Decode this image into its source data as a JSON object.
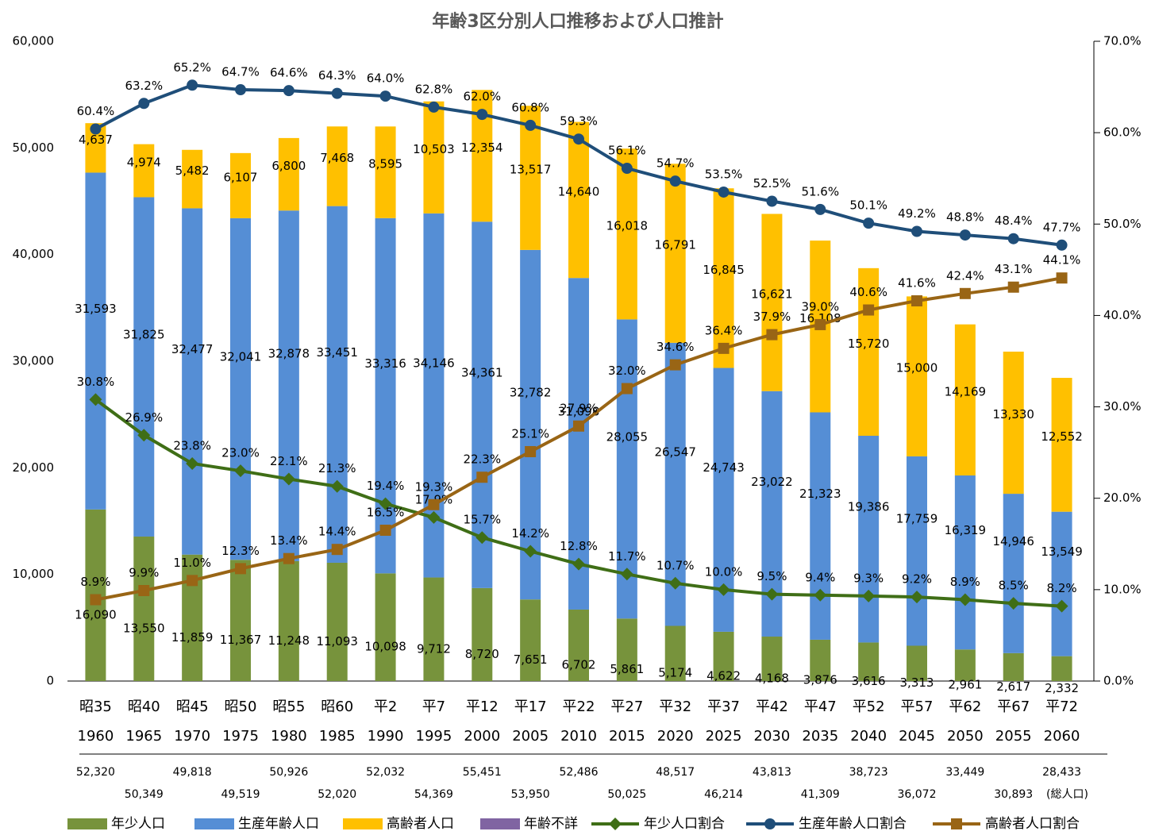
{
  "chart_data": {
    "type": "bar",
    "title": "年齢3区分別人口推移および人口推計",
    "categories": [
      "昭35",
      "昭40",
      "昭45",
      "昭50",
      "昭55",
      "昭60",
      "平2",
      "平7",
      "平12",
      "平17",
      "平22",
      "平27",
      "平32",
      "平37",
      "平42",
      "平47",
      "平52",
      "平57",
      "平62",
      "平67",
      "平72"
    ],
    "years": [
      "1960",
      "1965",
      "1970",
      "1975",
      "1980",
      "1985",
      "1990",
      "1995",
      "2000",
      "2005",
      "2010",
      "2015",
      "2020",
      "2025",
      "2030",
      "2035",
      "2040",
      "2045",
      "2050",
      "2055",
      "2060"
    ],
    "ylim": [
      0,
      60000
    ],
    "yticks": [
      0,
      {
        "value": 10000,
        "label": "10,000"
      },
      {
        "value": 20000,
        "label": "20,000"
      },
      {
        "value": 30000,
        "label": "30,000"
      },
      {
        "value": 40000,
        "label": "40,000"
      },
      {
        "value": 50000,
        "label": "50,000"
      },
      {
        "value": 60000,
        "label": "60,000"
      }
    ],
    "y2lim": [
      0,
      70
    ],
    "y2ticks": [
      {
        "value": 0,
        "label": "0.0%"
      },
      {
        "value": 10,
        "label": "10.0%"
      },
      {
        "value": 20,
        "label": "20.0%"
      },
      {
        "value": 30,
        "label": "30.0%"
      },
      {
        "value": 40,
        "label": "40.0%"
      },
      {
        "value": 50,
        "label": "50.0%"
      },
      {
        "value": 60,
        "label": "60.0%"
      },
      {
        "value": 70,
        "label": "70.0%"
      }
    ],
    "legend": "bottom",
    "series": [
      {
        "name": "年少人口",
        "color": "#77933c",
        "kind": "bar",
        "values": [
          16090,
          13550,
          11859,
          11367,
          11248,
          11093,
          10098,
          9712,
          8720,
          7651,
          6702,
          5861,
          5174,
          4622,
          4168,
          3876,
          3616,
          3313,
          2961,
          2617,
          2332
        ],
        "value_labels": [
          "16,090",
          "13,550",
          "11,859",
          "11,367",
          "11,248",
          "11,093",
          "10,098",
          "9,712",
          "8,720",
          "7,651",
          "6,702",
          "5,861",
          "5,174",
          "4,622",
          "4,168",
          "3,876",
          "3,616",
          "3,313",
          "2,961",
          "2,617",
          "2,332"
        ]
      },
      {
        "name": "生産年齢人口",
        "color": "#558ed5",
        "kind": "bar",
        "values": [
          31593,
          31825,
          32477,
          32041,
          32878,
          33451,
          33316,
          34146,
          34361,
          32782,
          31098,
          28055,
          26547,
          24743,
          23022,
          21323,
          19386,
          17759,
          16319,
          14946,
          13549
        ],
        "value_labels": [
          "31,593",
          "31,825",
          "32,477",
          "32,041",
          "32,878",
          "33,451",
          "33,316",
          "34,146",
          "34,361",
          "32,782",
          "31,098",
          "28,055",
          "26,547",
          "24,743",
          "23,022",
          "21,323",
          "19,386",
          "17,759",
          "16,319",
          "14,946",
          "13,549"
        ]
      },
      {
        "name": "高齢者人口",
        "color": "#ffc000",
        "kind": "bar",
        "values": [
          4637,
          4974,
          5482,
          6107,
          6800,
          7468,
          8595,
          10503,
          12354,
          13517,
          14640,
          16018,
          16791,
          16845,
          16621,
          16108,
          15720,
          15000,
          14169,
          13330,
          12552
        ],
        "value_labels": [
          "4,637",
          "4,974",
          "5,482",
          "6,107",
          "6,800",
          "7,468",
          "8,595",
          "10,503",
          "12,354",
          "13,517",
          "14,640",
          "16,018",
          "16,791",
          "16,845",
          "16,621",
          "16,108",
          "15,720",
          "15,000",
          "14,169",
          "13,330",
          "12,552"
        ]
      },
      {
        "name": "年齢不詳",
        "color": "#8064a2",
        "kind": "bar",
        "values": [
          null,
          null,
          null,
          null,
          null,
          null,
          null,
          null,
          null,
          null,
          null,
          null,
          null,
          null,
          null,
          null,
          null,
          null,
          null,
          null,
          null
        ]
      },
      {
        "name": "年少人口割合",
        "color": "#3f6e16",
        "kind": "line",
        "marker": "diamond",
        "axis": "y2",
        "values": [
          30.8,
          26.9,
          23.8,
          23.0,
          22.1,
          21.3,
          19.4,
          17.9,
          15.7,
          14.2,
          12.8,
          11.7,
          10.7,
          10.0,
          9.5,
          9.4,
          9.3,
          9.2,
          8.9,
          8.5,
          8.2
        ],
        "value_labels": [
          "30.8%",
          "26.9%",
          "23.8%",
          "23.0%",
          "22.1%",
          "21.3%",
          "19.4%",
          "17.9%",
          "15.7%",
          "14.2%",
          "12.8%",
          "11.7%",
          "10.7%",
          "10.0%",
          "9.5%",
          "9.4%",
          "9.3%",
          "9.2%",
          "8.9%",
          "8.5%",
          "8.2%"
        ]
      },
      {
        "name": "生産年齢人口割合",
        "color": "#1f4e79",
        "kind": "line",
        "marker": "circle",
        "axis": "y2",
        "values": [
          60.4,
          63.2,
          65.2,
          64.7,
          64.6,
          64.3,
          64.0,
          62.8,
          62.0,
          60.8,
          59.3,
          56.1,
          54.7,
          53.5,
          52.5,
          51.6,
          50.1,
          49.2,
          48.8,
          48.4,
          47.7
        ],
        "value_labels": [
          "60.4%",
          "63.2%",
          "65.2%",
          "64.7%",
          "64.6%",
          "64.3%",
          "64.0%",
          "62.8%",
          "62.0%",
          "60.8%",
          "59.3%",
          "56.1%",
          "54.7%",
          "53.5%",
          "52.5%",
          "51.6%",
          "50.1%",
          "49.2%",
          "48.8%",
          "48.4%",
          "47.7%"
        ]
      },
      {
        "name": "高齢者人口割合",
        "color": "#996515",
        "kind": "line",
        "marker": "square",
        "axis": "y2",
        "values": [
          8.9,
          9.9,
          11.0,
          12.3,
          13.4,
          14.4,
          16.5,
          19.3,
          22.3,
          25.1,
          27.9,
          32.0,
          34.6,
          36.4,
          37.9,
          39.0,
          40.6,
          41.6,
          42.4,
          43.1,
          44.1
        ],
        "value_labels": [
          "8.9%",
          "9.9%",
          "11.0%",
          "12.3%",
          "13.4%",
          "14.4%",
          "16.5%",
          "19.3%",
          "22.3%",
          "25.1%",
          "27.9%",
          "32.0%",
          "34.6%",
          "36.4%",
          "37.9%",
          "39.0%",
          "40.6%",
          "41.6%",
          "42.4%",
          "43.1%",
          "44.1%"
        ]
      }
    ],
    "totals": [
      52320,
      50349,
      49818,
      49519,
      50926,
      52020,
      52032,
      54369,
      55451,
      53950,
      52486,
      50025,
      48517,
      46214,
      43813,
      41309,
      38723,
      36072,
      33449,
      30893,
      28433
    ],
    "totals_labels": [
      "52,320",
      "50,349",
      "49,818",
      "49,519",
      "50,926",
      "52,020",
      "52,032",
      "54,369",
      "55,451",
      "53,950",
      "52,486",
      "50,025",
      "48,517",
      "46,214",
      "43,813",
      "41,309",
      "38,723",
      "36,072",
      "33,449",
      "30,893",
      "28,433"
    ],
    "totals_name": "(総人口)"
  }
}
